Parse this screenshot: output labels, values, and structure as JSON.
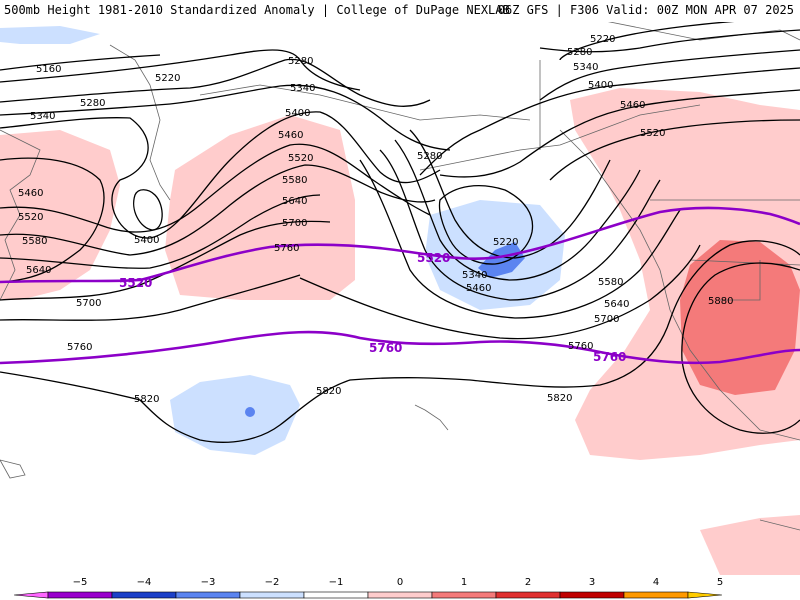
{
  "header": {
    "left": "500mb Height 1981-2010 Standardized Anomaly | College of DuPage NEXLAB",
    "right": "06Z GFS | F306 Valid: 00Z MON APR 07 2025"
  },
  "colors": {
    "pos1": "#ffcccc",
    "pos2": "#f47a7a",
    "pos3": "#e03030",
    "neg1": "#cce0ff",
    "neg2": "#5b84f0",
    "neg3": "#1c40c8",
    "highlight_contour": "#8c00c8",
    "contour": "#000000"
  },
  "contour_labels": {
    "h5160": "5160",
    "h5220_a": "5220",
    "h5220_b": "5220",
    "h5220_c": "5220",
    "h5280_a": "5280",
    "h5280_b": "5280",
    "h5280_c": "5280",
    "h5280_d": "5280",
    "h5340_a": "5340",
    "h5340_b": "5340",
    "h5340_c": "5340",
    "h5340_d": "5340",
    "h5400_a": "5400",
    "h5400_b": "5400",
    "h5400_c": "5400",
    "h5460_a": "5460",
    "h5460_b": "5460",
    "h5460_c": "5460",
    "h5460_d": "5460",
    "h5520_a": "5520",
    "h5520_b": "5520",
    "h5520_c": "5520",
    "h5580_a": "5580",
    "h5580_b": "5580",
    "h5580_c": "5580",
    "h5640_a": "5640",
    "h5640_b": "5640",
    "h5640_c": "5640",
    "h5700_a": "5700",
    "h5700_b": "5700",
    "h5700_c": "5700",
    "h5760_a": "5760",
    "h5760_b": "5760",
    "h5760_c": "5760",
    "h5820_a": "5820",
    "h5820_b": "5820",
    "h5820_c": "5820",
    "h5880": "5880",
    "p5520_a": "5520",
    "p5520_b": "5520",
    "p5760_a": "5760",
    "p5760_b": "5760"
  },
  "colorbar": {
    "ticks": [
      "−5",
      "−4",
      "−3",
      "−2",
      "−1",
      "0",
      "1",
      "2",
      "3",
      "4",
      "5"
    ],
    "colors": [
      "#ff66ff",
      "#9900cc",
      "#1c40c8",
      "#5b84f0",
      "#cce0ff",
      "#ffffff",
      "#ffcccc",
      "#f47a7a",
      "#e03030",
      "#c00000",
      "#ff9900",
      "#ffcc00"
    ]
  }
}
